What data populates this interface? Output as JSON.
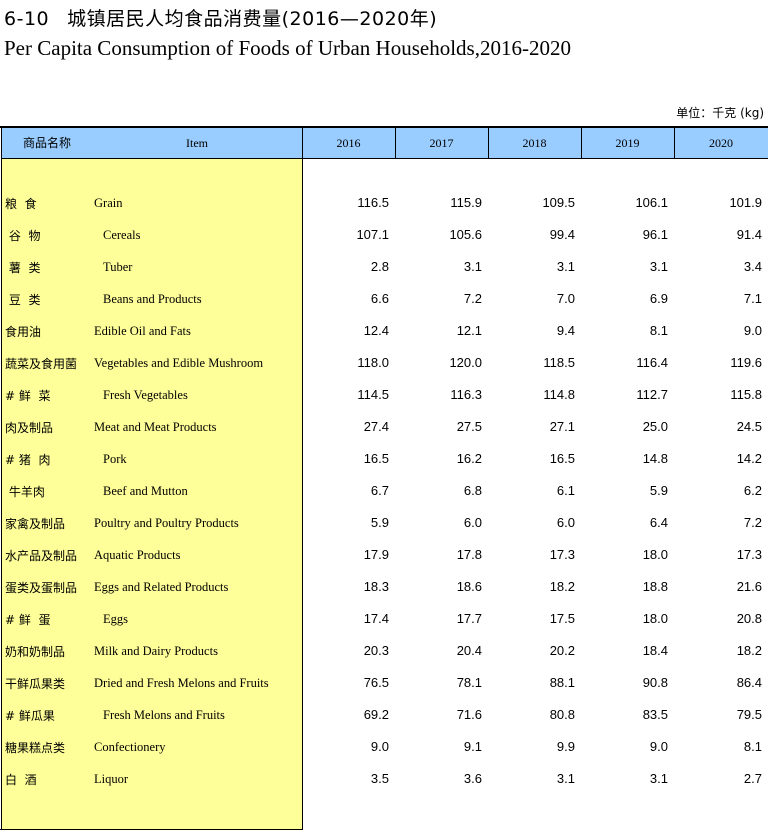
{
  "title": {
    "number": "6-10",
    "chinese": "城镇居民人均食品消费量(2016—2020年)",
    "english": "Per Capita Consumption of Foods of Urban Households,2016-2020"
  },
  "unit": "单位：千克 (kg)",
  "header": {
    "name_cn": "商品名称",
    "item": "Item",
    "years": [
      "2016",
      "2017",
      "2018",
      "2019",
      "2020"
    ]
  },
  "rows": [
    {
      "cn": "粮  食",
      "en": "Grain",
      "indent": false,
      "values": [
        "116.5",
        "115.9",
        "109.5",
        "106.1",
        "101.9"
      ]
    },
    {
      "cn": " 谷  物",
      "en": "Cereals",
      "indent": true,
      "values": [
        "107.1",
        "105.6",
        "99.4",
        "96.1",
        "91.4"
      ]
    },
    {
      "cn": " 薯  类",
      "en": "Tuber",
      "indent": true,
      "values": [
        "2.8",
        "3.1",
        "3.1",
        "3.1",
        "3.4"
      ]
    },
    {
      "cn": " 豆  类",
      "en": "Beans and Products",
      "indent": true,
      "values": [
        "6.6",
        "7.2",
        "7.0",
        "6.9",
        "7.1"
      ]
    },
    {
      "cn": "食用油",
      "en": "Edible Oil and Fats",
      "indent": false,
      "values": [
        "12.4",
        "12.1",
        "9.4",
        "8.1",
        "9.0"
      ]
    },
    {
      "cn": "蔬菜及食用菌",
      "en": "Vegetables and Edible Mushroom",
      "indent": false,
      "values": [
        "118.0",
        "120.0",
        "118.5",
        "116.4",
        "119.6"
      ]
    },
    {
      "cn": "# 鲜  菜",
      "en": "Fresh Vegetables",
      "indent": true,
      "values": [
        "114.5",
        "116.3",
        "114.8",
        "112.7",
        "115.8"
      ]
    },
    {
      "cn": "肉及制品",
      "en": "Meat and Meat Products",
      "indent": false,
      "values": [
        "27.4",
        "27.5",
        "27.1",
        "25.0",
        "24.5"
      ]
    },
    {
      "cn": "# 猪  肉",
      "en": "Pork",
      "indent": true,
      "values": [
        "16.5",
        "16.2",
        "16.5",
        "14.8",
        "14.2"
      ]
    },
    {
      "cn": " 牛羊肉",
      "en": "Beef and Mutton",
      "indent": true,
      "values": [
        "6.7",
        "6.8",
        "6.1",
        "5.9",
        "6.2"
      ]
    },
    {
      "cn": "家禽及制品",
      "en": "Poultry and Poultry Products",
      "indent": false,
      "values": [
        "5.9",
        "6.0",
        "6.0",
        "6.4",
        "7.2"
      ]
    },
    {
      "cn": "水产品及制品",
      "en": "Aquatic Products",
      "indent": false,
      "values": [
        "17.9",
        "17.8",
        "17.3",
        "18.0",
        "17.3"
      ]
    },
    {
      "cn": "蛋类及蛋制品",
      "en": "Eggs and Related Products",
      "indent": false,
      "values": [
        "18.3",
        "18.6",
        "18.2",
        "18.8",
        "21.6"
      ]
    },
    {
      "cn": "# 鲜  蛋",
      "en": "Eggs",
      "indent": true,
      "values": [
        "17.4",
        "17.7",
        "17.5",
        "18.0",
        "20.8"
      ]
    },
    {
      "cn": "奶和奶制品",
      "en": "Milk and Dairy Products",
      "indent": false,
      "values": [
        "20.3",
        "20.4",
        "20.2",
        "18.4",
        "18.2"
      ]
    },
    {
      "cn": "干鲜瓜果类",
      "en": "Dried and Fresh Melons and Fruits",
      "indent": false,
      "values": [
        "76.5",
        "78.1",
        "88.1",
        "90.8",
        "86.4"
      ]
    },
    {
      "cn": "# 鲜瓜果",
      "en": "Fresh Melons and Fruits",
      "indent": true,
      "values": [
        "69.2",
        "71.6",
        "80.8",
        "83.5",
        "79.5"
      ]
    },
    {
      "cn": "糖果糕点类",
      "en": "Confectionery",
      "indent": false,
      "values": [
        "9.0",
        "9.1",
        "9.9",
        "9.0",
        "8.1"
      ]
    },
    {
      "cn": "白  酒",
      "en": "Liquor",
      "indent": false,
      "values": [
        "3.5",
        "3.6",
        "3.1",
        "3.1",
        "2.7"
      ]
    }
  ]
}
